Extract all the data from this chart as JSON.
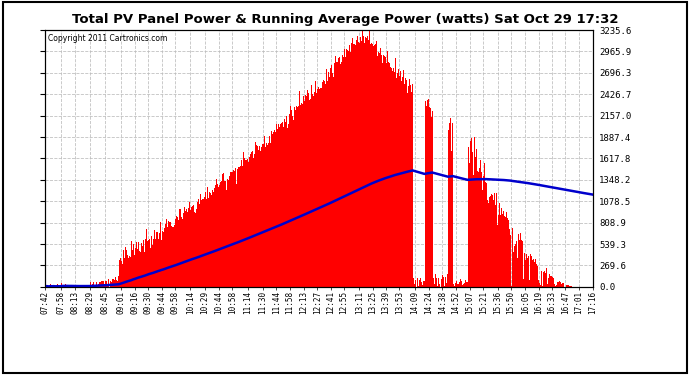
{
  "title": "Total PV Panel Power & Running Average Power (watts) Sat Oct 29 17:32",
  "copyright": "Copyright 2011 Cartronics.com",
  "bg_color": "#ffffff",
  "bar_color": "#ff0000",
  "line_color": "#0000cc",
  "yticks": [
    0.0,
    269.6,
    539.3,
    808.9,
    1078.5,
    1348.2,
    1617.8,
    1887.4,
    2157.0,
    2426.7,
    2696.3,
    2965.9,
    3235.6
  ],
  "ymax": 3235.6,
  "ymin": 0.0,
  "grid_color": "#aaaaaa",
  "grid_style": "--",
  "xtick_labels": [
    "07:42",
    "07:58",
    "08:13",
    "08:29",
    "08:45",
    "09:01",
    "09:16",
    "09:30",
    "09:44",
    "09:58",
    "10:14",
    "10:29",
    "10:44",
    "10:58",
    "11:14",
    "11:30",
    "11:44",
    "11:58",
    "12:13",
    "12:27",
    "12:41",
    "12:55",
    "13:11",
    "13:25",
    "13:39",
    "13:53",
    "14:09",
    "14:24",
    "14:38",
    "14:52",
    "15:07",
    "15:21",
    "15:36",
    "15:50",
    "16:05",
    "16:19",
    "16:33",
    "16:47",
    "17:01",
    "17:16"
  ]
}
